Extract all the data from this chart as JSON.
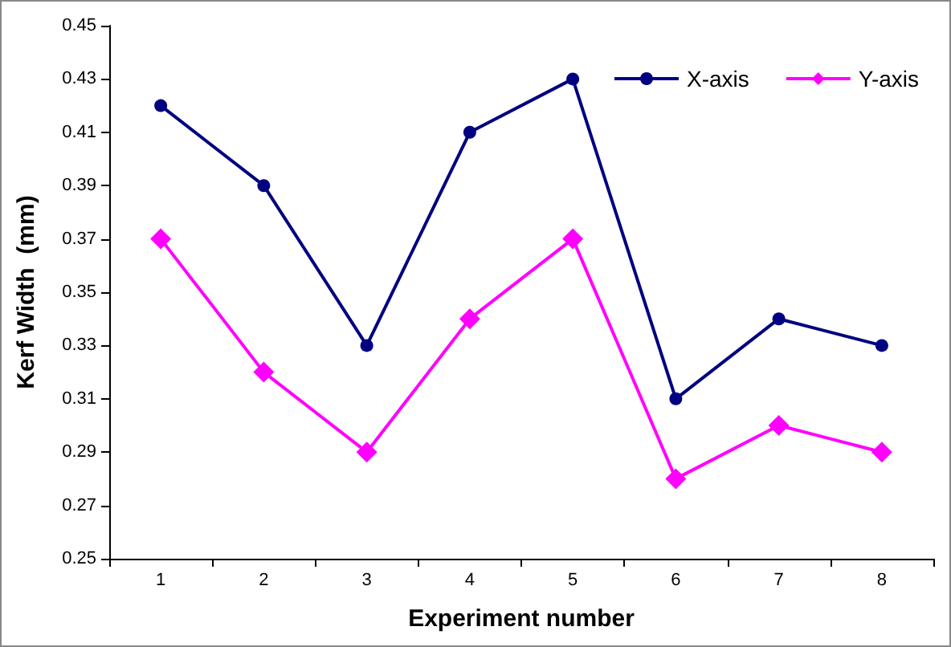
{
  "chart_data": {
    "type": "line",
    "xlabel": "Experiment number",
    "ylabel": "Kerf Width  (mm)",
    "categories": [
      "1",
      "2",
      "3",
      "4",
      "5",
      "6",
      "7",
      "8"
    ],
    "series": [
      {
        "name": "X-axis",
        "color": "#000080",
        "marker": "circle",
        "values": [
          0.42,
          0.39,
          0.33,
          0.41,
          0.43,
          0.31,
          0.34,
          0.33
        ]
      },
      {
        "name": "Y-axis",
        "color": "#ff00ff",
        "marker": "diamond",
        "values": [
          0.37,
          0.32,
          0.29,
          0.34,
          0.37,
          0.28,
          0.3,
          0.29
        ]
      }
    ],
    "ylim": [
      0.25,
      0.45
    ],
    "yticks": [
      0.25,
      0.27,
      0.29,
      0.31,
      0.33,
      0.35,
      0.37,
      0.39,
      0.41,
      0.43,
      0.45
    ],
    "grid": false,
    "legend": "top right",
    "line_style": "solid"
  }
}
